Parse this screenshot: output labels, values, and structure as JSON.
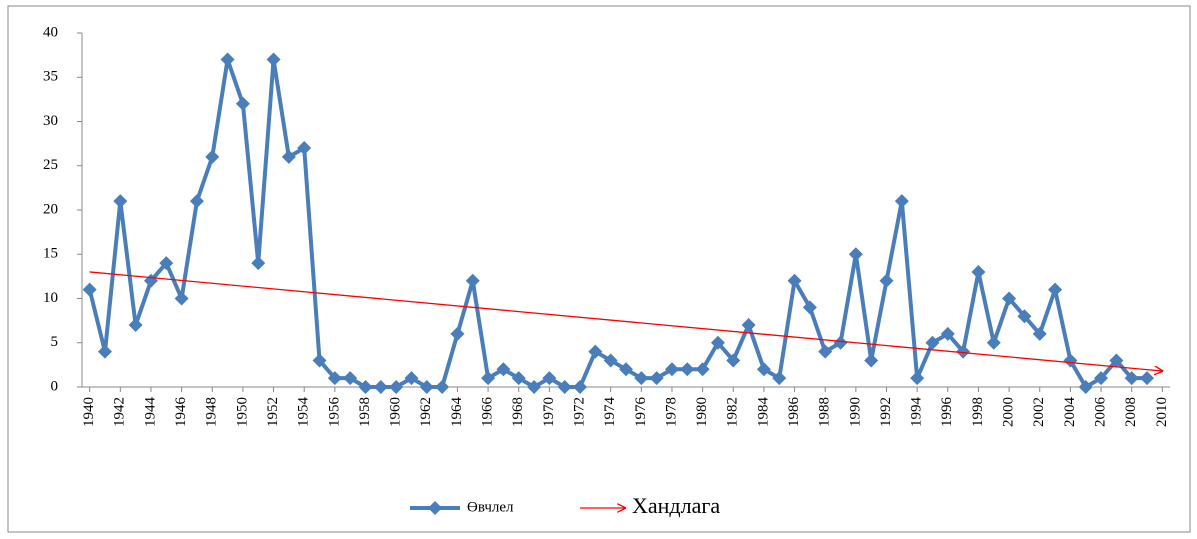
{
  "chart_data": {
    "type": "line",
    "x": [
      1940,
      1941,
      1942,
      1943,
      1944,
      1945,
      1946,
      1947,
      1948,
      1949,
      1950,
      1951,
      1952,
      1953,
      1954,
      1955,
      1956,
      1957,
      1958,
      1959,
      1960,
      1961,
      1962,
      1963,
      1964,
      1965,
      1966,
      1967,
      1968,
      1969,
      1970,
      1971,
      1972,
      1973,
      1974,
      1975,
      1976,
      1977,
      1978,
      1979,
      1980,
      1981,
      1982,
      1983,
      1984,
      1985,
      1986,
      1987,
      1988,
      1989,
      1990,
      1991,
      1992,
      1993,
      1994,
      1995,
      1996,
      1997,
      1998,
      1999,
      2000,
      2001,
      2002,
      2003,
      2004,
      2005,
      2006,
      2007,
      2008,
      2009
    ],
    "xlim": [
      1939.5,
      2010.5
    ],
    "xticks": [
      1940,
      1942,
      1944,
      1946,
      1948,
      1950,
      1952,
      1954,
      1956,
      1958,
      1960,
      1962,
      1964,
      1966,
      1968,
      1970,
      1972,
      1974,
      1976,
      1978,
      1980,
      1982,
      1984,
      1986,
      1988,
      1990,
      1992,
      1994,
      1996,
      1998,
      2000,
      2002,
      2004,
      2006,
      2008,
      2010
    ],
    "ylim": [
      0,
      40
    ],
    "yticks": [
      0,
      5,
      10,
      15,
      20,
      25,
      30,
      35,
      40
    ],
    "legend": "bottom",
    "series": [
      {
        "name": "Өвчлел",
        "color": "#4a7ebb",
        "marker": "diamond",
        "values": [
          11,
          4,
          21,
          7,
          12,
          14,
          10,
          21,
          26,
          37,
          32,
          14,
          37,
          26,
          27,
          3,
          1,
          1,
          0,
          0,
          0,
          1,
          0,
          0,
          6,
          12,
          1,
          2,
          1,
          0,
          1,
          0,
          0,
          4,
          3,
          2,
          1,
          1,
          2,
          2,
          2,
          5,
          3,
          7,
          2,
          1,
          12,
          9,
          4,
          5,
          15,
          3,
          12,
          21,
          1,
          5,
          6,
          4,
          13,
          5,
          10,
          8,
          6,
          11,
          3,
          0,
          1,
          3,
          1,
          1
        ]
      },
      {
        "name": "Хандлага",
        "color": "#ff0000",
        "arrow": true,
        "x": [
          1940,
          2010
        ],
        "values": [
          13,
          1.8
        ]
      }
    ]
  }
}
